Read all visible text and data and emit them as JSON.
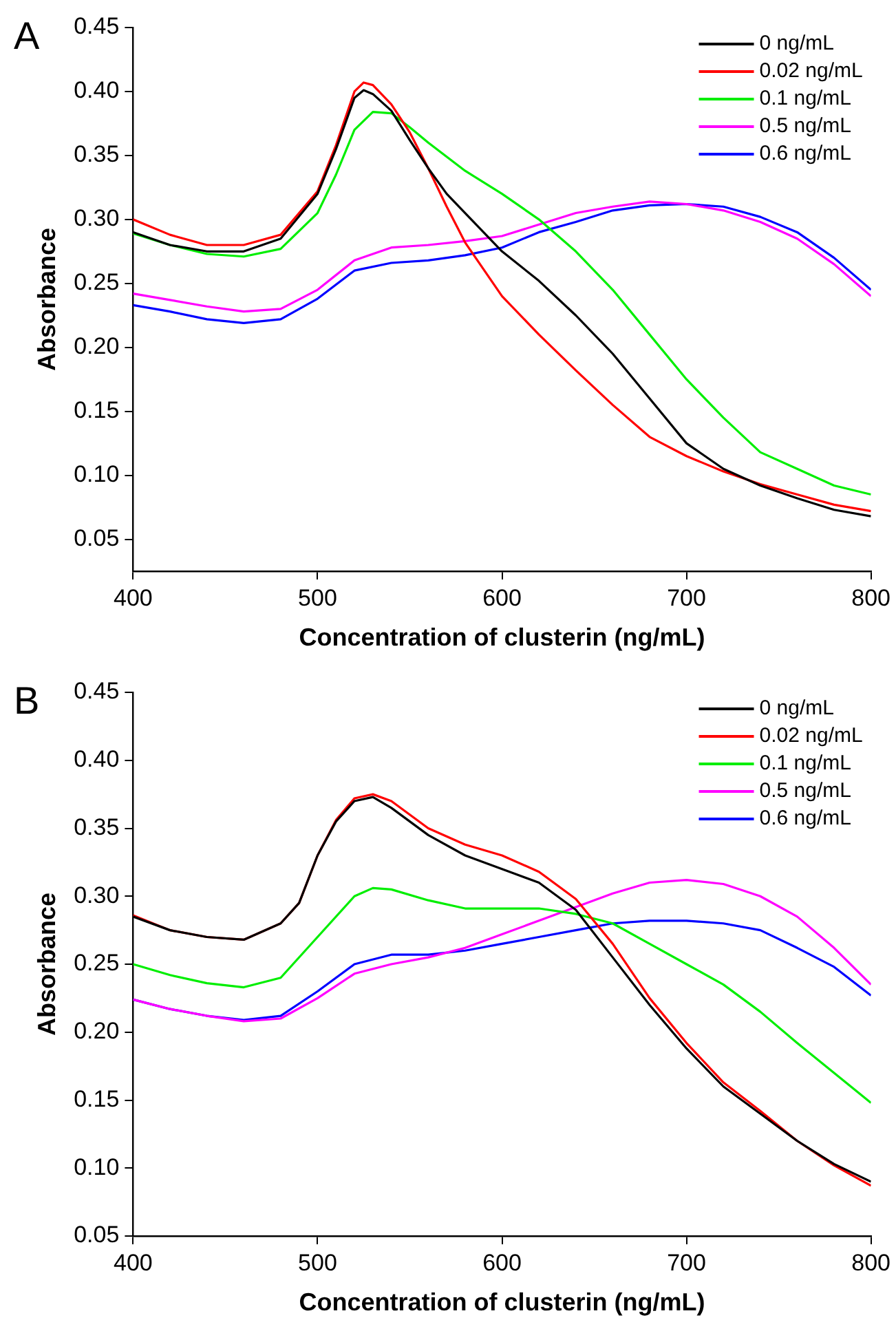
{
  "chart_data": [
    {
      "type": "line",
      "title": "A",
      "xlabel": "Concentration of clusterin (ng/mL)",
      "ylabel": "Absorbance",
      "xlim": [
        400,
        800
      ],
      "xticks": [
        400,
        500,
        600,
        700,
        800
      ],
      "ylim": [
        0.025,
        0.45
      ],
      "yticks": [
        {
          "value": 0.05,
          "label": "0.05"
        },
        {
          "value": 0.1,
          "label": "0.10"
        },
        {
          "value": 0.15,
          "label": "0.15"
        },
        {
          "value": 0.2,
          "label": "0.20"
        },
        {
          "value": 0.25,
          "label": "0.25"
        },
        {
          "value": 0.3,
          "label": "0.30"
        },
        {
          "value": 0.35,
          "label": "0.35"
        },
        {
          "value": 0.4,
          "label": "0.40"
        },
        {
          "value": 0.45,
          "label": "0.45"
        }
      ],
      "grid": false,
      "legend": "top right",
      "marker": "none",
      "line_style": "solid",
      "series": [
        {
          "name": "0 ng/mL",
          "color": "#000000",
          "x": [
            400,
            420,
            440,
            460,
            480,
            500,
            510,
            520,
            525,
            530,
            540,
            550,
            560,
            570,
            580,
            600,
            620,
            640,
            660,
            680,
            700,
            720,
            740,
            760,
            780,
            800
          ],
          "values": [
            0.29,
            0.28,
            0.275,
            0.275,
            0.285,
            0.32,
            0.355,
            0.395,
            0.401,
            0.398,
            0.385,
            0.362,
            0.34,
            0.32,
            0.305,
            0.275,
            0.252,
            0.225,
            0.195,
            0.16,
            0.125,
            0.105,
            0.092,
            0.082,
            0.073,
            0.068
          ]
        },
        {
          "name": "0.02 ng/mL",
          "color": "#ff0000",
          "x": [
            400,
            420,
            440,
            460,
            480,
            500,
            510,
            520,
            525,
            530,
            540,
            550,
            560,
            570,
            580,
            600,
            620,
            640,
            660,
            680,
            700,
            720,
            740,
            760,
            780,
            800
          ],
          "values": [
            0.3,
            0.288,
            0.28,
            0.28,
            0.288,
            0.322,
            0.358,
            0.4,
            0.407,
            0.405,
            0.39,
            0.368,
            0.34,
            0.31,
            0.282,
            0.24,
            0.21,
            0.182,
            0.155,
            0.13,
            0.115,
            0.103,
            0.093,
            0.085,
            0.077,
            0.072
          ]
        },
        {
          "name": "0.1 ng/mL",
          "color": "#00ee00",
          "x": [
            400,
            420,
            440,
            460,
            480,
            500,
            510,
            520,
            530,
            540,
            550,
            560,
            580,
            600,
            620,
            640,
            660,
            680,
            700,
            720,
            740,
            760,
            780,
            800
          ],
          "values": [
            0.289,
            0.28,
            0.273,
            0.271,
            0.277,
            0.305,
            0.335,
            0.37,
            0.384,
            0.383,
            0.372,
            0.36,
            0.338,
            0.32,
            0.3,
            0.275,
            0.245,
            0.21,
            0.175,
            0.145,
            0.118,
            0.105,
            0.092,
            0.085
          ]
        },
        {
          "name": "0.5 ng/mL",
          "color": "#ff00ff",
          "x": [
            400,
            420,
            440,
            460,
            480,
            500,
            520,
            540,
            560,
            580,
            600,
            620,
            640,
            660,
            680,
            700,
            720,
            740,
            760,
            780,
            800
          ],
          "values": [
            0.242,
            0.237,
            0.232,
            0.228,
            0.23,
            0.245,
            0.268,
            0.278,
            0.28,
            0.283,
            0.287,
            0.296,
            0.305,
            0.31,
            0.314,
            0.312,
            0.307,
            0.298,
            0.285,
            0.265,
            0.24
          ]
        },
        {
          "name": "0.6 ng/mL",
          "color": "#0000ff",
          "x": [
            400,
            420,
            440,
            460,
            480,
            500,
            520,
            540,
            560,
            580,
            600,
            620,
            640,
            660,
            680,
            700,
            720,
            740,
            760,
            780,
            800
          ],
          "values": [
            0.233,
            0.228,
            0.222,
            0.219,
            0.222,
            0.238,
            0.26,
            0.266,
            0.268,
            0.272,
            0.278,
            0.29,
            0.298,
            0.307,
            0.311,
            0.312,
            0.31,
            0.302,
            0.29,
            0.27,
            0.245
          ]
        }
      ]
    },
    {
      "type": "line",
      "title": "B",
      "xlabel": "Concentration of clusterin (ng/mL)",
      "ylabel": "Absorbance",
      "xlim": [
        400,
        800
      ],
      "xticks": [
        400,
        500,
        600,
        700,
        800
      ],
      "ylim": [
        0.05,
        0.45
      ],
      "yticks": [
        {
          "value": 0.05,
          "label": "0.05"
        },
        {
          "value": 0.1,
          "label": "0.10"
        },
        {
          "value": 0.15,
          "label": "0.15"
        },
        {
          "value": 0.2,
          "label": "0.20"
        },
        {
          "value": 0.25,
          "label": "0.25"
        },
        {
          "value": 0.3,
          "label": "0.30"
        },
        {
          "value": 0.35,
          "label": "0.35"
        },
        {
          "value": 0.4,
          "label": "0.40"
        },
        {
          "value": 0.45,
          "label": "0.45"
        }
      ],
      "grid": false,
      "legend": "top right",
      "marker": "none",
      "line_style": "solid",
      "series": [
        {
          "name": "0 ng/mL",
          "color": "#000000",
          "x": [
            400,
            420,
            440,
            460,
            480,
            490,
            500,
            510,
            520,
            530,
            540,
            560,
            580,
            600,
            620,
            640,
            660,
            680,
            700,
            720,
            740,
            760,
            780,
            800
          ],
          "values": [
            0.285,
            0.275,
            0.27,
            0.268,
            0.28,
            0.295,
            0.33,
            0.355,
            0.37,
            0.373,
            0.365,
            0.345,
            0.33,
            0.32,
            0.31,
            0.29,
            0.255,
            0.22,
            0.188,
            0.16,
            0.14,
            0.12,
            0.103,
            0.09
          ]
        },
        {
          "name": "0.02 ng/mL",
          "color": "#ff0000",
          "x": [
            400,
            420,
            440,
            460,
            480,
            490,
            500,
            510,
            520,
            530,
            540,
            560,
            580,
            600,
            620,
            640,
            660,
            680,
            700,
            720,
            740,
            760,
            780,
            800
          ],
          "values": [
            0.286,
            0.275,
            0.27,
            0.268,
            0.28,
            0.295,
            0.33,
            0.356,
            0.372,
            0.375,
            0.37,
            0.35,
            0.338,
            0.33,
            0.318,
            0.298,
            0.265,
            0.225,
            0.192,
            0.163,
            0.142,
            0.12,
            0.102,
            0.087
          ]
        },
        {
          "name": "0.1 ng/mL",
          "color": "#00ee00",
          "x": [
            400,
            420,
            440,
            460,
            480,
            500,
            520,
            530,
            540,
            560,
            580,
            600,
            620,
            640,
            660,
            680,
            700,
            720,
            740,
            760,
            780,
            800
          ],
          "values": [
            0.25,
            0.242,
            0.236,
            0.233,
            0.24,
            0.27,
            0.3,
            0.306,
            0.305,
            0.297,
            0.291,
            0.291,
            0.291,
            0.287,
            0.28,
            0.265,
            0.25,
            0.235,
            0.215,
            0.192,
            0.17,
            0.148
          ]
        },
        {
          "name": "0.5 ng/mL",
          "color": "#ff00ff",
          "x": [
            400,
            420,
            440,
            460,
            480,
            500,
            520,
            540,
            560,
            580,
            600,
            620,
            640,
            660,
            680,
            700,
            720,
            740,
            760,
            780,
            800
          ],
          "values": [
            0.224,
            0.217,
            0.212,
            0.208,
            0.21,
            0.225,
            0.243,
            0.25,
            0.255,
            0.262,
            0.272,
            0.282,
            0.292,
            0.302,
            0.31,
            0.312,
            0.309,
            0.3,
            0.285,
            0.262,
            0.235
          ]
        },
        {
          "name": "0.6 ng/mL",
          "color": "#0000ff",
          "x": [
            400,
            420,
            440,
            460,
            480,
            500,
            520,
            540,
            560,
            580,
            600,
            620,
            640,
            660,
            680,
            700,
            720,
            740,
            760,
            780,
            800
          ],
          "values": [
            0.224,
            0.217,
            0.212,
            0.209,
            0.212,
            0.23,
            0.25,
            0.257,
            0.257,
            0.26,
            0.265,
            0.27,
            0.275,
            0.28,
            0.282,
            0.282,
            0.28,
            0.275,
            0.262,
            0.248,
            0.227
          ]
        }
      ]
    }
  ]
}
